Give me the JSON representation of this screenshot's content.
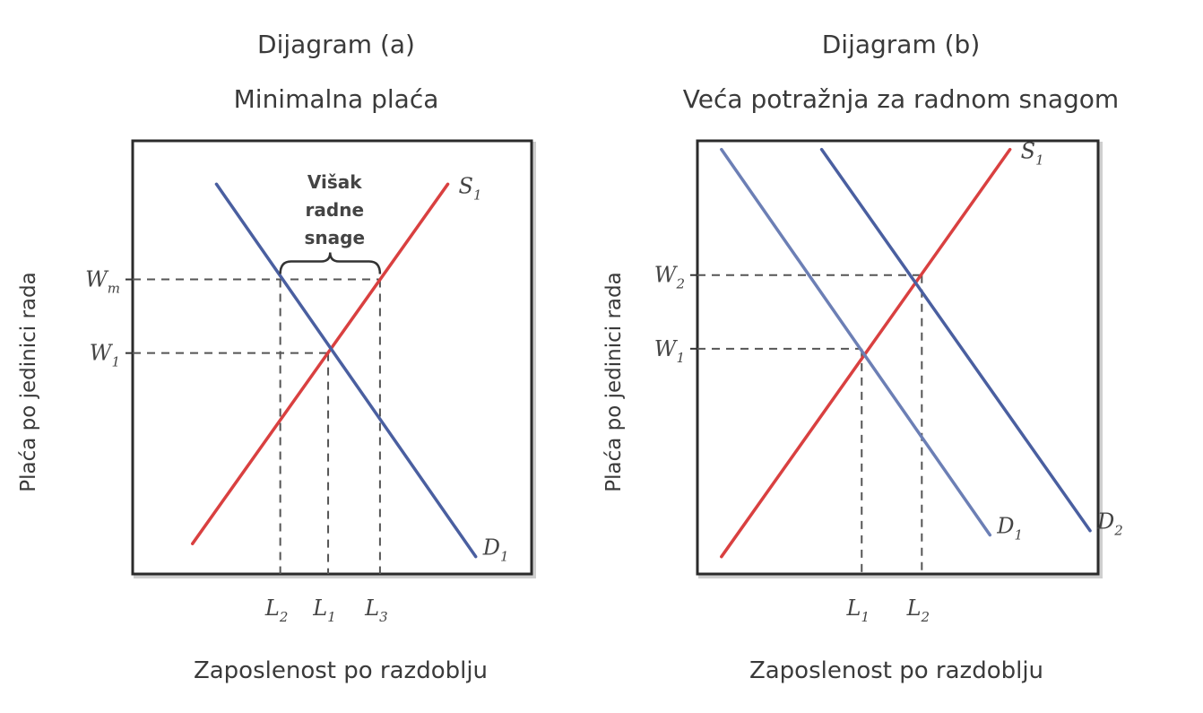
{
  "chart_data": [
    {
      "type": "line",
      "panel": "Dijagram (a)",
      "title": "Minimalna plaća",
      "xlabel": "Zaposlenost po razdoblju",
      "ylabel": "Plaća po jedinici rada",
      "xlim": [
        0,
        10
      ],
      "ylim": [
        0,
        10
      ],
      "series": [
        {
          "name": "S1",
          "label": "S",
          "sub": "1",
          "color": "#d94040",
          "points": [
            [
              1.5,
              0.7
            ],
            [
              7.9,
              9.0
            ]
          ]
        },
        {
          "name": "D1",
          "label": "D",
          "sub": "1",
          "color": "#4a5fa0",
          "points": [
            [
              2.1,
              9.0
            ],
            [
              8.6,
              0.4
            ]
          ]
        }
      ],
      "levels": [
        {
          "axis": "y",
          "label": "W",
          "sub": "m",
          "value": 6.8,
          "from_x": 3.7,
          "to_x": 6.2
        },
        {
          "axis": "y",
          "label": "W",
          "sub": "1",
          "value": 5.1,
          "from_x": 4.9,
          "to_x": 4.9
        }
      ],
      "verticals": [
        {
          "label": "L",
          "sub": "2",
          "value": 3.7,
          "top_y": 6.8
        },
        {
          "label": "L",
          "sub": "1",
          "value": 4.9,
          "top_y": 5.1
        },
        {
          "label": "L",
          "sub": "3",
          "value": 6.2,
          "top_y": 6.8
        }
      ],
      "annotation": {
        "lines": [
          "Višak",
          "radne",
          "snage"
        ],
        "from_x": 3.7,
        "to_x": 6.2,
        "y": 6.8
      }
    },
    {
      "type": "line",
      "panel": "Dijagram (b)",
      "title": "Veća potražnja za radnom snagom",
      "xlabel": "Zaposlenost po razdoblju",
      "ylabel": "Plaća po jedinici rada",
      "xlim": [
        0,
        10
      ],
      "ylim": [
        0,
        10
      ],
      "series": [
        {
          "name": "S1",
          "label": "S",
          "sub": "1",
          "color": "#d94040",
          "points": [
            [
              0.6,
              0.4
            ],
            [
              7.8,
              9.8
            ]
          ]
        },
        {
          "name": "D1",
          "label": "D",
          "sub": "1",
          "color": "#6c7fb5",
          "points": [
            [
              0.6,
              9.8
            ],
            [
              7.3,
              0.9
            ]
          ]
        },
        {
          "name": "D2",
          "label": "D",
          "sub": "2",
          "color": "#4a5fa0",
          "points": [
            [
              3.1,
              9.8
            ],
            [
              9.8,
              1.0
            ]
          ]
        }
      ],
      "levels": [
        {
          "axis": "y",
          "label": "W",
          "sub": "2",
          "value": 6.9,
          "from_x": 5.6,
          "to_x": 5.6
        },
        {
          "axis": "y",
          "label": "W",
          "sub": "1",
          "value": 5.2,
          "from_x": 4.1,
          "to_x": 4.1
        }
      ],
      "verticals": [
        {
          "label": "L",
          "sub": "1",
          "value": 4.1,
          "top_y": 5.2
        },
        {
          "label": "L",
          "sub": "2",
          "value": 5.6,
          "top_y": 6.9
        }
      ]
    }
  ]
}
